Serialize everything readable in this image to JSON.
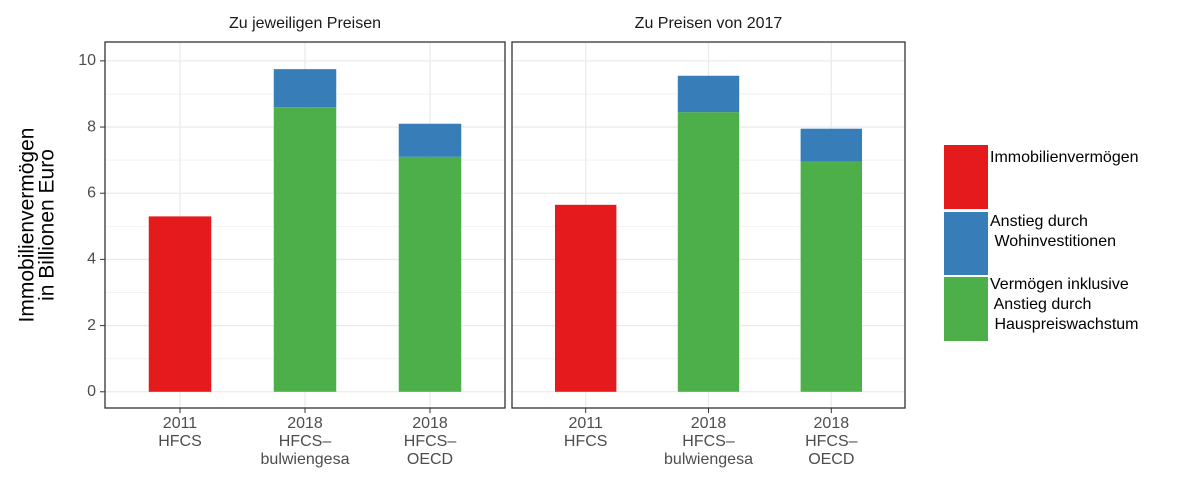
{
  "y_label": [
    "Immobilienvermögen",
    "in Billionen Euro"
  ],
  "chart_data": [
    {
      "type": "bar",
      "stacked": true,
      "title": "Zu jeweiligen Preisen",
      "categories": [
        [
          "2011",
          "HFCS"
        ],
        [
          "2018",
          "HFCS–",
          "bulwiengesa"
        ],
        [
          "2018",
          "HFCS–",
          "OECD"
        ]
      ],
      "series": [
        {
          "name": "Immobilienvermögen",
          "color": "#e41a1c",
          "values": [
            5.3,
            null,
            null
          ]
        },
        {
          "name": "Anstieg durch\n Wohinvestitionen",
          "color": "#377eb8",
          "values": [
            null,
            1.15,
            1.0
          ]
        },
        {
          "name": "Vermögen inklusive\n Anstieg durch\n Hauspreiswachstum",
          "color": "#4daf4a",
          "values": [
            null,
            8.6,
            7.1
          ]
        }
      ],
      "ylim": [
        -0.49,
        10.57
      ],
      "yticks": [
        0,
        2,
        4,
        6,
        8,
        10
      ],
      "grid": true
    },
    {
      "type": "bar",
      "stacked": true,
      "title": "Zu Preisen von 2017",
      "categories": [
        [
          "2011",
          "HFCS"
        ],
        [
          "2018",
          "HFCS–",
          "bulwiengesa"
        ],
        [
          "2018",
          "HFCS–",
          "OECD"
        ]
      ],
      "series": [
        {
          "color": "#e41a1c",
          "values": [
            5.65,
            null,
            null
          ]
        },
        {
          "color": "#377eb8",
          "values": [
            null,
            1.1,
            1.0
          ]
        },
        {
          "color": "#4daf4a",
          "values": [
            null,
            8.45,
            6.95
          ]
        }
      ],
      "ylim": [
        -0.49,
        10.57
      ],
      "yticks": [
        0,
        2,
        4,
        6,
        8,
        10
      ],
      "grid": true
    }
  ]
}
